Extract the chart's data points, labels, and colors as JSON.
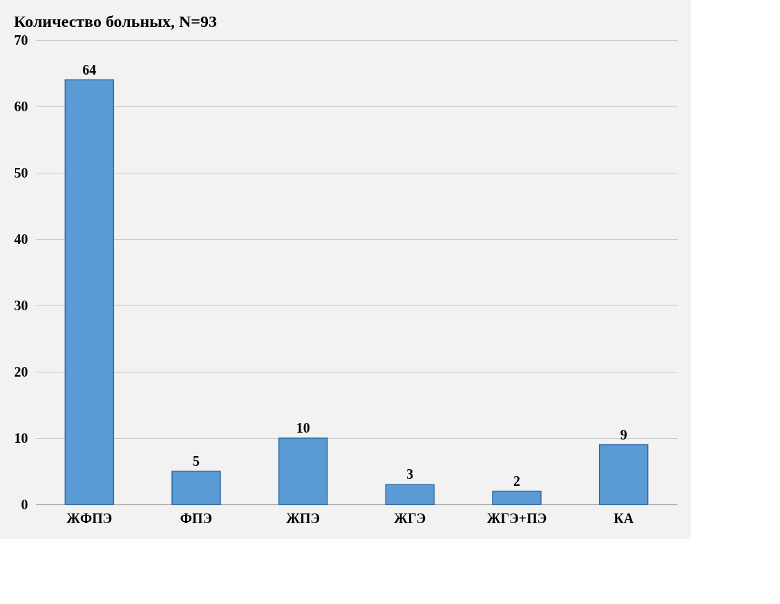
{
  "chart_data": {
    "type": "bar",
    "title": "Количество больных, N=93",
    "categories": [
      "ЖФПЭ",
      "ФПЭ",
      "ЖПЭ",
      "ЖГЭ",
      "ЖГЭ+ПЭ",
      "КА"
    ],
    "values": [
      64,
      5,
      10,
      3,
      2,
      9
    ],
    "color": "#5b9bd5",
    "ylim": [
      0,
      70
    ],
    "yticks": [
      0,
      10,
      20,
      30,
      40,
      50,
      60,
      70
    ],
    "grid": "y",
    "data_labels": true
  }
}
